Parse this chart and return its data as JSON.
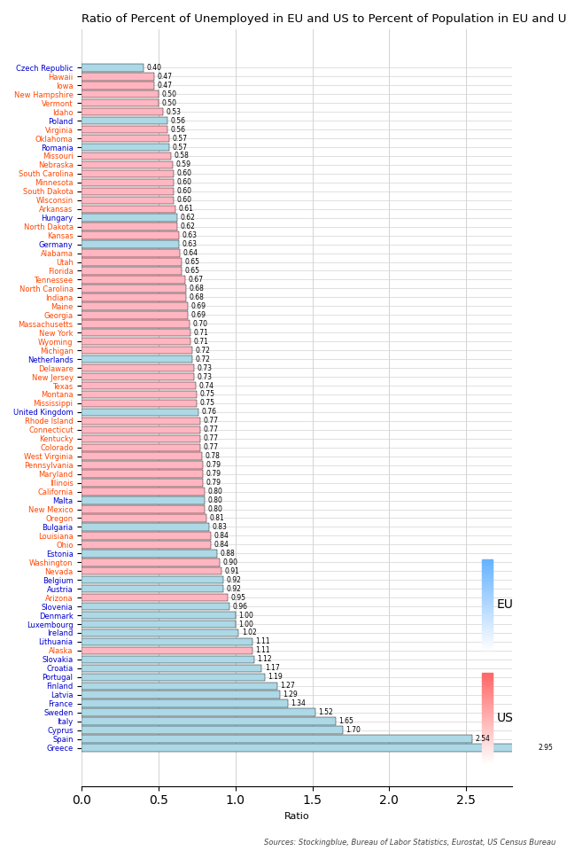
{
  "title": "Ratio of Percent of Unemployed in EU and US to Percent of Population in EU and US",
  "xlabel": "Ratio",
  "source": "Sources: Stockingblue, Bureau of Labor Statistics, Eurostat, US Census Bureau",
  "categories": [
    "Czech Republic",
    "Hawaii",
    "Iowa",
    "New Hampshire",
    "Vermont",
    "Idaho",
    "Poland",
    "Virginia",
    "Oklahoma",
    "Romania",
    "Missouri",
    "Nebraska",
    "South Carolina",
    "Minnesota",
    "South Dakota",
    "Wisconsin",
    "Arkansas",
    "Hungary",
    "North Dakota",
    "Kansas",
    "Germany",
    "Alabama",
    "Utah",
    "Florida",
    "Tennessee",
    "North Carolina",
    "Indiana",
    "Maine",
    "Georgia",
    "Massachusetts",
    "New York",
    "Wyoming",
    "Michigan",
    "Netherlands",
    "Delaware",
    "New Jersey",
    "Texas",
    "Montana",
    "Mississippi",
    "United Kingdom",
    "Rhode Island",
    "Connecticut",
    "Kentucky",
    "Colorado",
    "West Virginia",
    "Pennsylvania",
    "Maryland",
    "Illinois",
    "California",
    "Malta",
    "New Mexico",
    "Oregon",
    "Bulgaria",
    "Louisiana",
    "Ohio",
    "Estonia",
    "Washington",
    "Nevada",
    "Belgium",
    "Austria",
    "Arizona",
    "Slovenia",
    "Denmark",
    "Luxembourg",
    "Ireland",
    "Lithuania",
    "Alaska",
    "Slovakia",
    "Croatia",
    "Portugal",
    "Finland",
    "Latvia",
    "France",
    "Sweden",
    "Italy",
    "Cyprus",
    "Spain",
    "Greece"
  ],
  "values": [
    0.4,
    0.47,
    0.47,
    0.5,
    0.5,
    0.53,
    0.56,
    0.56,
    0.57,
    0.57,
    0.58,
    0.59,
    0.6,
    0.6,
    0.6,
    0.6,
    0.61,
    0.62,
    0.62,
    0.63,
    0.63,
    0.64,
    0.65,
    0.65,
    0.67,
    0.68,
    0.68,
    0.69,
    0.69,
    0.7,
    0.71,
    0.71,
    0.72,
    0.72,
    0.73,
    0.73,
    0.74,
    0.75,
    0.75,
    0.76,
    0.77,
    0.77,
    0.77,
    0.77,
    0.78,
    0.79,
    0.79,
    0.79,
    0.8,
    0.8,
    0.8,
    0.81,
    0.83,
    0.84,
    0.84,
    0.88,
    0.9,
    0.91,
    0.92,
    0.92,
    0.95,
    0.96,
    1.0,
    1.0,
    1.02,
    1.11,
    1.11,
    1.12,
    1.17,
    1.19,
    1.27,
    1.29,
    1.34,
    1.52,
    1.65,
    1.7,
    2.54,
    2.95
  ],
  "eu_countries": [
    "Czech Republic",
    "Poland",
    "Romania",
    "Hungary",
    "Germany",
    "Netherlands",
    "United Kingdom",
    "Malta",
    "Bulgaria",
    "Estonia",
    "Belgium",
    "Austria",
    "Slovenia",
    "Denmark",
    "Luxembourg",
    "Ireland",
    "Lithuania",
    "Slovakia",
    "Croatia",
    "Portugal",
    "Finland",
    "Latvia",
    "France",
    "Sweden",
    "Italy",
    "Cyprus",
    "Spain",
    "Greece"
  ],
  "eu_color": "#ADD8E6",
  "us_color": "#FFB6C1",
  "eu_label_color": "#0000CD",
  "us_label_color": "#FF4500",
  "title_fontsize": 9.5,
  "bar_height": 0.85,
  "xlim": [
    0,
    2.8
  ],
  "xticks": [
    0.0,
    0.5,
    1.0,
    1.5,
    2.0,
    2.5
  ],
  "value_fontsize": 5.5,
  "label_fontsize": 6,
  "legend_eu_top": "#B0E8F0",
  "legend_eu_bottom": "#4080FF",
  "legend_us_top": "#FFD0D8",
  "legend_us_bottom": "#FF6060",
  "legend_eu_label": "EU",
  "legend_us_label": "US"
}
